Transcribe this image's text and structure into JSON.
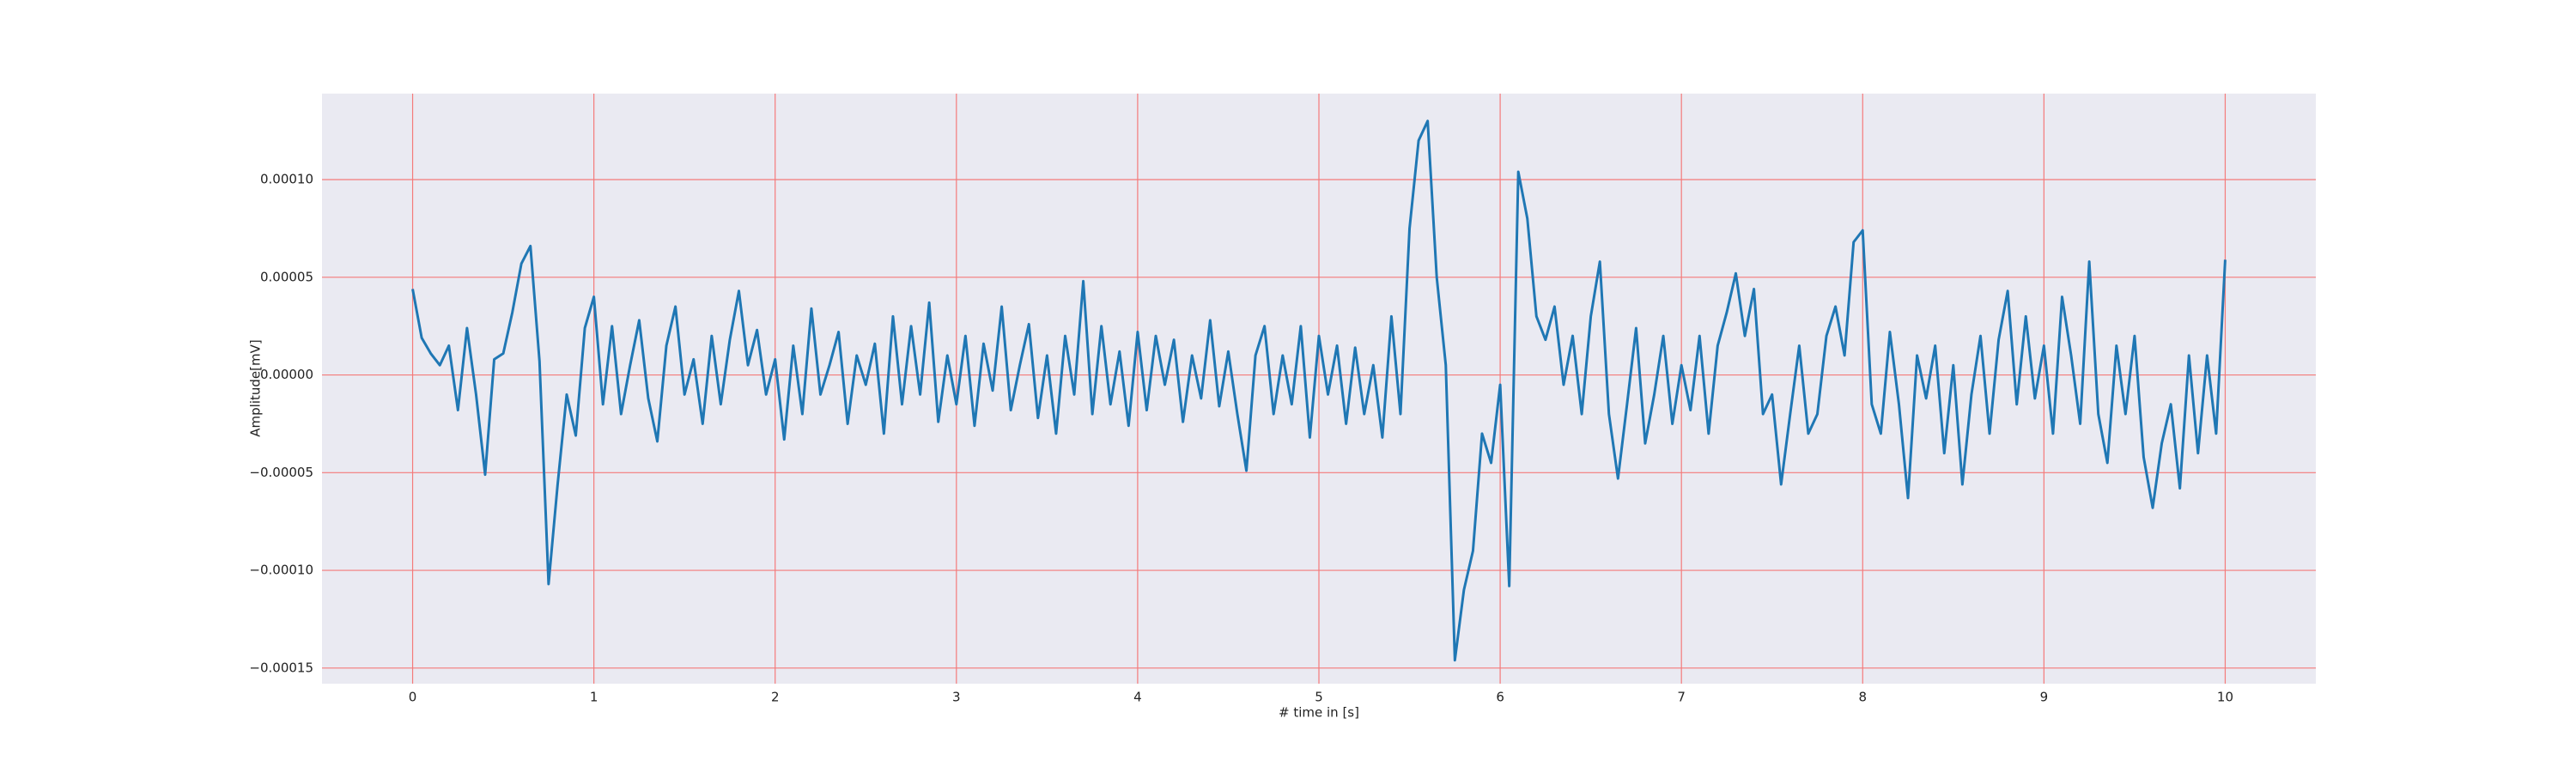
{
  "chart_data": {
    "type": "line",
    "xlabel": "# time in [s]",
    "ylabel": "Amplitude[mV]",
    "x": [
      0,
      0.05,
      0.1,
      0.15,
      0.2,
      0.25,
      0.3,
      0.35,
      0.4,
      0.45,
      0.5,
      0.55,
      0.6,
      0.65,
      0.7,
      0.75,
      0.8,
      0.85,
      0.9,
      0.95,
      1,
      1.05,
      1.1,
      1.15,
      1.2,
      1.25,
      1.3,
      1.35,
      1.4,
      1.45,
      1.5,
      1.55,
      1.6,
      1.65,
      1.7,
      1.75,
      1.8,
      1.85,
      1.9,
      1.95,
      2,
      2.05,
      2.1,
      2.15,
      2.2,
      2.25,
      2.3,
      2.35,
      2.4,
      2.45,
      2.5,
      2.55,
      2.6,
      2.65,
      2.7,
      2.75,
      2.8,
      2.85,
      2.9,
      2.95,
      3,
      3.05,
      3.1,
      3.15,
      3.2,
      3.25,
      3.3,
      3.35,
      3.4,
      3.45,
      3.5,
      3.55,
      3.6,
      3.65,
      3.7,
      3.75,
      3.8,
      3.85,
      3.9,
      3.95,
      4,
      4.05,
      4.1,
      4.15,
      4.2,
      4.25,
      4.3,
      4.35,
      4.4,
      4.45,
      4.5,
      4.55,
      4.6,
      4.65,
      4.7,
      4.75,
      4.8,
      4.85,
      4.9,
      4.95,
      5,
      5.05,
      5.1,
      5.15,
      5.2,
      5.25,
      5.3,
      5.35,
      5.4,
      5.45,
      5.5,
      5.55,
      5.6,
      5.65,
      5.7,
      5.75,
      5.8,
      5.85,
      5.9,
      5.95,
      6,
      6.05,
      6.1,
      6.15,
      6.2,
      6.25,
      6.3,
      6.35,
      6.4,
      6.45,
      6.5,
      6.55,
      6.6,
      6.65,
      6.7,
      6.75,
      6.8,
      6.85,
      6.9,
      6.95,
      7,
      7.05,
      7.1,
      7.15,
      7.2,
      7.25,
      7.3,
      7.35,
      7.4,
      7.45,
      7.5,
      7.55,
      7.6,
      7.65,
      7.7,
      7.75,
      7.8,
      7.85,
      7.9,
      7.95,
      8,
      8.05,
      8.1,
      8.15,
      8.2,
      8.25,
      8.3,
      8.35,
      8.4,
      8.45,
      8.5,
      8.55,
      8.6,
      8.65,
      8.7,
      8.75,
      8.8,
      8.85,
      8.9,
      8.95,
      9,
      9.05,
      9.1,
      9.15,
      9.2,
      9.25,
      9.3,
      9.35,
      9.4,
      9.45,
      9.5,
      9.55,
      9.6,
      9.65,
      9.7,
      9.75,
      9.8,
      9.85,
      9.9,
      9.95,
      10
    ],
    "values": [
      4.4e-05,
      1.9e-05,
      1.1e-05,
      5e-06,
      1.5e-05,
      -1.8e-05,
      2.4e-05,
      -1e-05,
      -5.1e-05,
      8e-06,
      1.1e-05,
      3.2e-05,
      5.7e-05,
      6.6e-05,
      7e-06,
      -0.000107,
      -5.6e-05,
      -1e-05,
      -3.1e-05,
      2.4e-05,
      4e-05,
      -1.5e-05,
      2.5e-05,
      -2e-05,
      5e-06,
      2.8e-05,
      -1.2e-05,
      -3.4e-05,
      1.5e-05,
      3.5e-05,
      -1e-05,
      8e-06,
      -2.5e-05,
      2e-05,
      -1.5e-05,
      1.8e-05,
      4.3e-05,
      5e-06,
      2.3e-05,
      -1e-05,
      8e-06,
      -3.3e-05,
      1.5e-05,
      -2e-05,
      3.4e-05,
      -1e-05,
      5e-06,
      2.2e-05,
      -2.5e-05,
      1e-05,
      -5e-06,
      1.6e-05,
      -3e-05,
      3e-05,
      -1.5e-05,
      2.5e-05,
      -1e-05,
      3.7e-05,
      -2.4e-05,
      1e-05,
      -1.5e-05,
      2e-05,
      -2.6e-05,
      1.6e-05,
      -8e-06,
      3.5e-05,
      -1.8e-05,
      5e-06,
      2.6e-05,
      -2.2e-05,
      1e-05,
      -3e-05,
      2e-05,
      -1e-05,
      4.8e-05,
      -2e-05,
      2.5e-05,
      -1.5e-05,
      1.2e-05,
      -2.6e-05,
      2.2e-05,
      -1.8e-05,
      2e-05,
      -5e-06,
      1.8e-05,
      -2.4e-05,
      1e-05,
      -1.2e-05,
      2.8e-05,
      -1.6e-05,
      1.2e-05,
      -2e-05,
      -4.9e-05,
      1e-05,
      2.5e-05,
      -2e-05,
      1e-05,
      -1.5e-05,
      2.5e-05,
      -3.2e-05,
      2e-05,
      -1e-05,
      1.5e-05,
      -2.5e-05,
      1.4e-05,
      -2e-05,
      5e-06,
      -3.2e-05,
      3e-05,
      -2e-05,
      7.5e-05,
      0.00012,
      0.00013,
      5e-05,
      5e-06,
      -0.000146,
      -0.00011,
      -9e-05,
      -3e-05,
      -4.5e-05,
      -5e-06,
      -0.000108,
      0.000104,
      8e-05,
      3e-05,
      1.8e-05,
      3.5e-05,
      -5e-06,
      2e-05,
      -2e-05,
      3e-05,
      5.8e-05,
      -2e-05,
      -5.3e-05,
      -1.5e-05,
      2.4e-05,
      -3.5e-05,
      -1e-05,
      2e-05,
      -2.5e-05,
      5e-06,
      -1.8e-05,
      2e-05,
      -3e-05,
      1.5e-05,
      3.2e-05,
      5.2e-05,
      2e-05,
      4.4e-05,
      -2e-05,
      -1e-05,
      -5.6e-05,
      -2e-05,
      1.5e-05,
      -3e-05,
      -2e-05,
      2e-05,
      3.5e-05,
      1e-05,
      6.8e-05,
      7.4e-05,
      -1.5e-05,
      -3e-05,
      2.2e-05,
      -1.5e-05,
      -6.3e-05,
      1e-05,
      -1.2e-05,
      1.5e-05,
      -4e-05,
      5e-06,
      -5.6e-05,
      -1e-05,
      2e-05,
      -3e-05,
      1.8e-05,
      4.3e-05,
      -1.5e-05,
      3e-05,
      -1.2e-05,
      1.5e-05,
      -3e-05,
      4e-05,
      1e-05,
      -2.5e-05,
      5.8e-05,
      -2e-05,
      -4.5e-05,
      1.5e-05,
      -2e-05,
      2e-05,
      -4.2e-05,
      -6.8e-05,
      -3.5e-05,
      -1.5e-05,
      -5.8e-05,
      1e-05,
      -4e-05,
      1e-05,
      -3e-05,
      5.9e-05
    ],
    "color": "#1f77b4",
    "xlim": [
      -0.5,
      10.5
    ],
    "ylim": [
      -0.000158,
      0.000144
    ],
    "xticks": [
      0,
      1,
      2,
      3,
      4,
      5,
      6,
      7,
      8,
      9,
      10
    ],
    "yticks": [
      {
        "value": -0.00015,
        "label": "−0.00015"
      },
      {
        "value": -0.0001,
        "label": "−0.00010"
      },
      {
        "value": -5e-05,
        "label": "−0.00005"
      },
      {
        "value": 0,
        "label": "0.00000"
      },
      {
        "value": 5e-05,
        "label": "0.00005"
      },
      {
        "value": 0.0001,
        "label": "0.00010"
      }
    ],
    "grid": true,
    "grid_color": "#f47a7a"
  }
}
